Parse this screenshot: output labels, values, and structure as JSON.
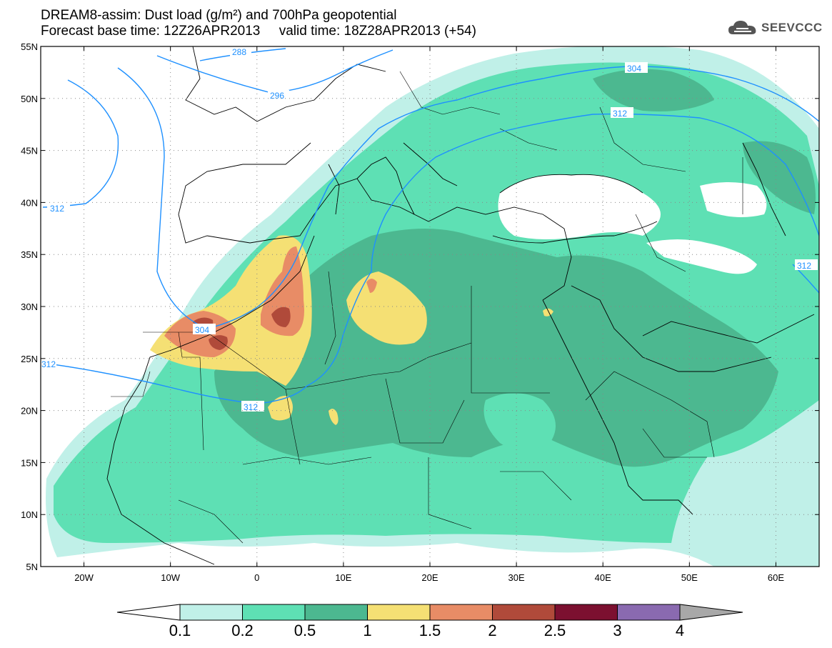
{
  "title": {
    "line1": "DREAM8-assim: Dust load (g/m²) and 700hPa geopotential",
    "line2": "Forecast base time: 12Z26APR2013     valid time: 18Z28APR2013 (+54)"
  },
  "logo": {
    "text": "SEEVCCC",
    "icon": "cloud-icon"
  },
  "map": {
    "lat_range": [
      5,
      55
    ],
    "lon_range": [
      -25,
      65
    ],
    "lat_ticks": [
      "55N",
      "50N",
      "45N",
      "40N",
      "35N",
      "30N",
      "25N",
      "20N",
      "15N",
      "10N",
      "5N"
    ],
    "lon_ticks": [
      "20W",
      "10W",
      "0",
      "10E",
      "20E",
      "30E",
      "40E",
      "50E",
      "60E"
    ],
    "grid": "dotted"
  },
  "contour_labels": [
    "288",
    "296",
    "304",
    "312",
    "312",
    "304",
    "312",
    "312",
    "312"
  ],
  "colorbar": {
    "labels": [
      "0.1",
      "0.2",
      "0.5",
      "1",
      "1.5",
      "2",
      "2.5",
      "3",
      "4"
    ],
    "colors": [
      "#ffffff",
      "#c0f0e8",
      "#5ee0b4",
      "#4cb890",
      "#f5e074",
      "#e88c66",
      "#b04a3a",
      "#7c1030",
      "#8a6ab0",
      "#a8a8a8"
    ]
  }
}
